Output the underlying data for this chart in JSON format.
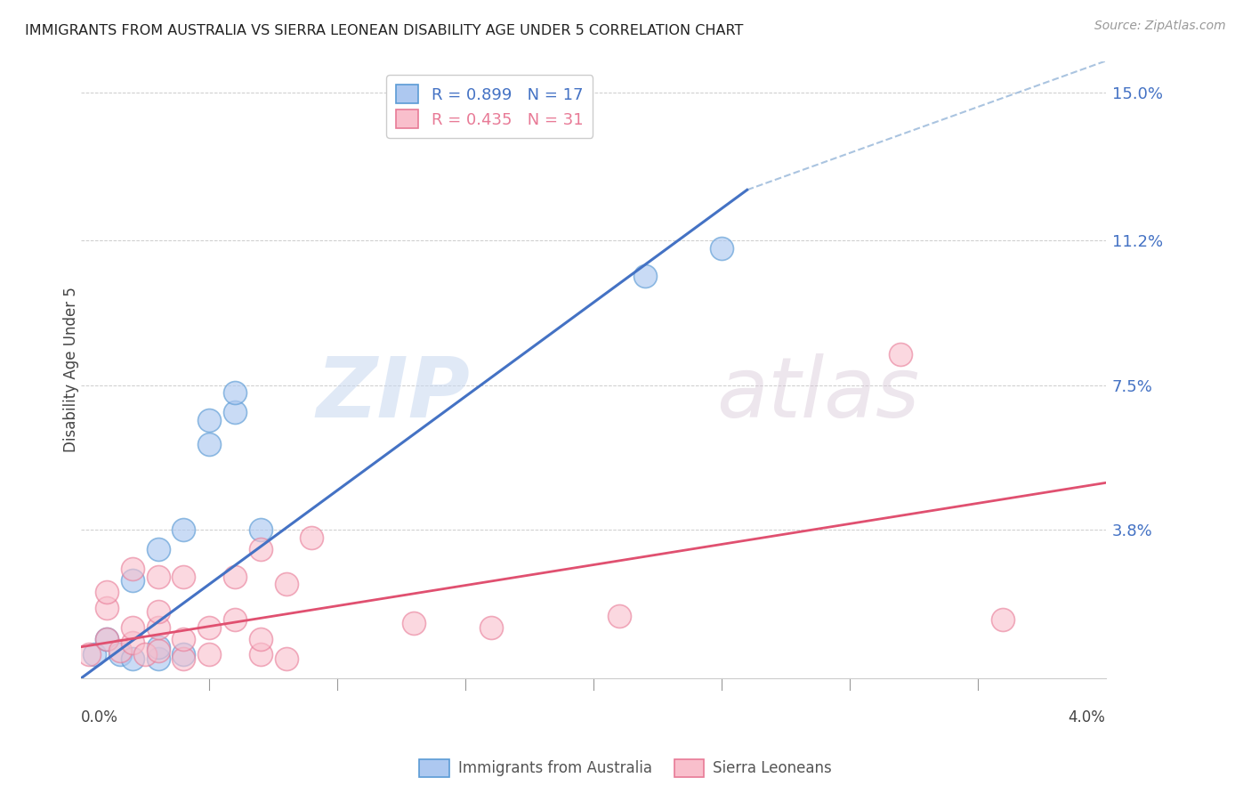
{
  "title": "IMMIGRANTS FROM AUSTRALIA VS SIERRA LEONEAN DISABILITY AGE UNDER 5 CORRELATION CHART",
  "source": "Source: ZipAtlas.com",
  "ylabel": "Disability Age Under 5",
  "xlim": [
    0.0,
    0.04
  ],
  "ylim": [
    0.0,
    0.158
  ],
  "R_blue": 0.899,
  "N_blue": 17,
  "R_pink": 0.435,
  "N_pink": 31,
  "legend_label_blue": "Immigrants from Australia",
  "legend_label_pink": "Sierra Leoneans",
  "blue_fill_color": "#adc8f0",
  "pink_fill_color": "#f9bfcc",
  "blue_edge_color": "#5b9bd5",
  "pink_edge_color": "#e87a96",
  "blue_line_color": "#4472c4",
  "pink_line_color": "#e05070",
  "dashed_line_color": "#aac4e0",
  "ytick_positions": [
    0.038,
    0.075,
    0.112,
    0.15
  ],
  "ytick_labels": [
    "3.8%",
    "7.5%",
    "11.2%",
    "15.0%"
  ],
  "watermark_zip": "ZIP",
  "watermark_atlas": "atlas",
  "blue_scatter_x": [
    0.0005,
    0.001,
    0.0015,
    0.002,
    0.002,
    0.003,
    0.003,
    0.003,
    0.004,
    0.004,
    0.005,
    0.005,
    0.006,
    0.006,
    0.007,
    0.022,
    0.025
  ],
  "blue_scatter_y": [
    0.006,
    0.01,
    0.006,
    0.005,
    0.025,
    0.005,
    0.008,
    0.033,
    0.006,
    0.038,
    0.06,
    0.066,
    0.068,
    0.073,
    0.038,
    0.103,
    0.11
  ],
  "pink_scatter_x": [
    0.0003,
    0.001,
    0.001,
    0.001,
    0.0015,
    0.002,
    0.002,
    0.002,
    0.0025,
    0.003,
    0.003,
    0.003,
    0.003,
    0.004,
    0.004,
    0.004,
    0.005,
    0.005,
    0.006,
    0.006,
    0.007,
    0.007,
    0.007,
    0.008,
    0.008,
    0.009,
    0.013,
    0.016,
    0.021,
    0.032,
    0.036
  ],
  "pink_scatter_y": [
    0.006,
    0.01,
    0.018,
    0.022,
    0.007,
    0.009,
    0.013,
    0.028,
    0.006,
    0.007,
    0.013,
    0.017,
    0.026,
    0.005,
    0.01,
    0.026,
    0.006,
    0.013,
    0.015,
    0.026,
    0.006,
    0.01,
    0.033,
    0.005,
    0.024,
    0.036,
    0.014,
    0.013,
    0.016,
    0.083,
    0.015
  ],
  "blue_line_x0": 0.0,
  "blue_line_y0": 0.0,
  "blue_line_x1": 0.026,
  "blue_line_y1": 0.125,
  "pink_line_x0": 0.0,
  "pink_line_y0": 0.008,
  "pink_line_x1": 0.04,
  "pink_line_y1": 0.05,
  "dash_line_x0": 0.026,
  "dash_line_y0": 0.125,
  "dash_line_x1": 0.04,
  "dash_line_y1": 0.158
}
